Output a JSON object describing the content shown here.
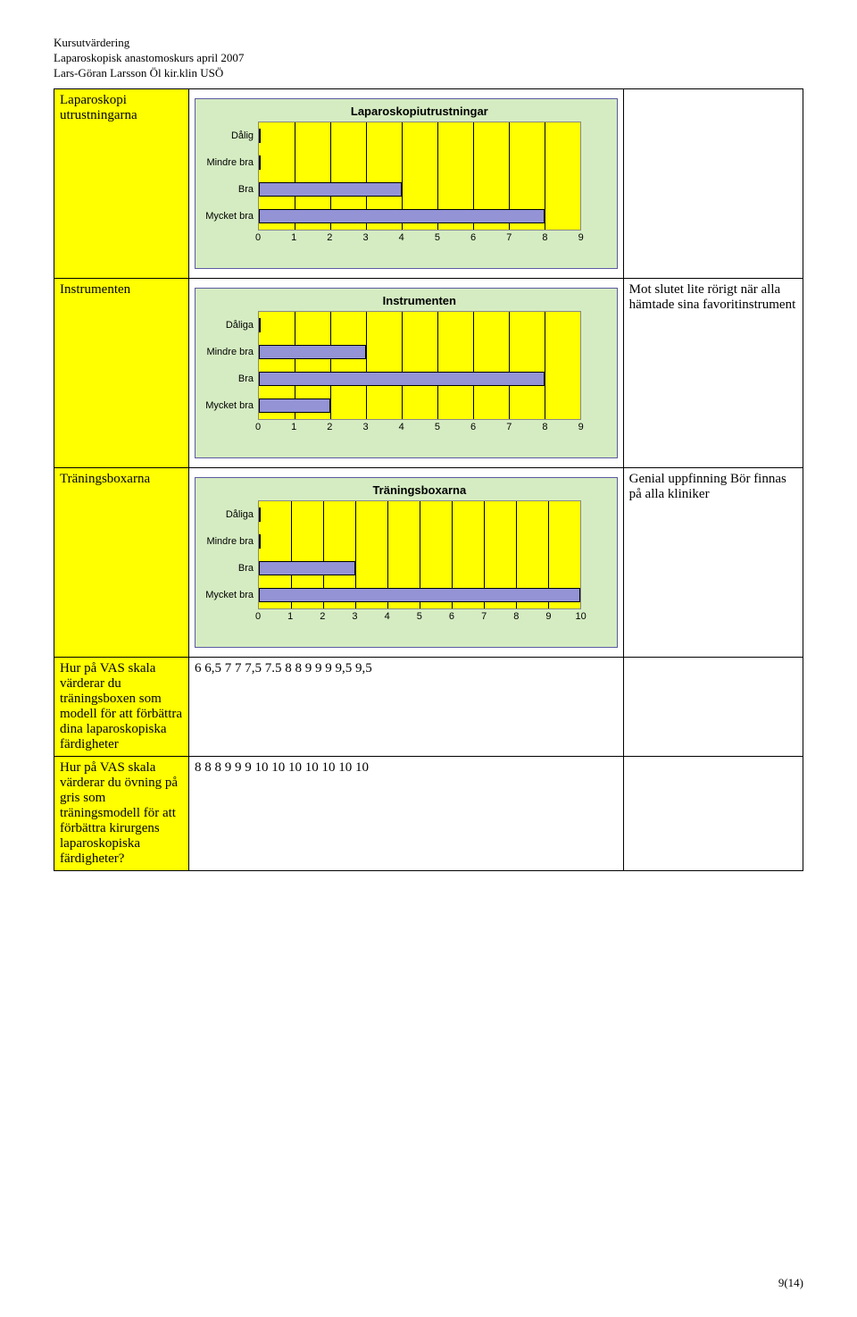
{
  "header": {
    "line1": "Kursutvärdering",
    "line2": "Laparoskopisk anastomoskurs april 2007",
    "line3": "Lars-Göran Larsson Öl kir.klin USÖ"
  },
  "page_number": "9(14)",
  "charts": {
    "equipment": {
      "title": "Laparoskopiutrustningar",
      "type": "bar",
      "orientation": "horizontal",
      "categories": [
        "Dålig",
        "Mindre bra",
        "Bra",
        "Mycket bra"
      ],
      "values": [
        0,
        0,
        4,
        8
      ],
      "xmin": 0,
      "xmax": 9,
      "xstep": 1,
      "bar_color": "#9393d6",
      "background": "#d5ecc2",
      "plot_bg": "#ffff00",
      "font_family": "Arial",
      "title_fontsize": 13,
      "label_fontsize": 11
    },
    "instruments": {
      "title": "Instrumenten",
      "type": "bar",
      "orientation": "horizontal",
      "categories": [
        "Dåliga",
        "Mindre bra",
        "Bra",
        "Mycket bra"
      ],
      "values": [
        0,
        3,
        8,
        2
      ],
      "xmin": 0,
      "xmax": 9,
      "xstep": 1,
      "bar_color": "#9393d6",
      "background": "#d5ecc2",
      "plot_bg": "#ffff00",
      "font_family": "Arial",
      "title_fontsize": 13,
      "label_fontsize": 11
    },
    "trainingboxes": {
      "title": "Träningsboxarna",
      "type": "bar",
      "orientation": "horizontal",
      "categories": [
        "Dåliga",
        "Mindre bra",
        "Bra",
        "Mycket bra"
      ],
      "values": [
        0,
        0,
        3,
        10
      ],
      "xmin": 0,
      "xmax": 10,
      "xstep": 1,
      "bar_color": "#9393d6",
      "background": "#d5ecc2",
      "plot_bg": "#ffff00",
      "font_family": "Arial",
      "title_fontsize": 13,
      "label_fontsize": 11
    }
  },
  "rows": {
    "equipment_label": "Laparoskopi utrustningarna",
    "instruments_label": "Instrumenten",
    "instruments_comment": "Mot slutet lite rörigt när alla hämtade sina favoritinstrument",
    "trainingboxes_label": "Träningsboxarna",
    "trainingboxes_comment": "Genial uppfinning Bör finnas på alla kliniker",
    "vas_trainingbox_label": "Hur på VAS skala värderar du träningsboxen som modell för att förbättra dina laparoskopiska färdigheter",
    "vas_trainingbox_value": "6 6,5 7 7 7,5 7.5 8 8 9 9 9 9,5 9,5",
    "vas_pig_label": "Hur på VAS skala värderar du övning på gris som träningsmodell för att förbättra kirurgens laparoskopiska färdigheter?",
    "vas_pig_value": "8 8 8 9 9 9 10 10 10 10 10 10 10"
  }
}
